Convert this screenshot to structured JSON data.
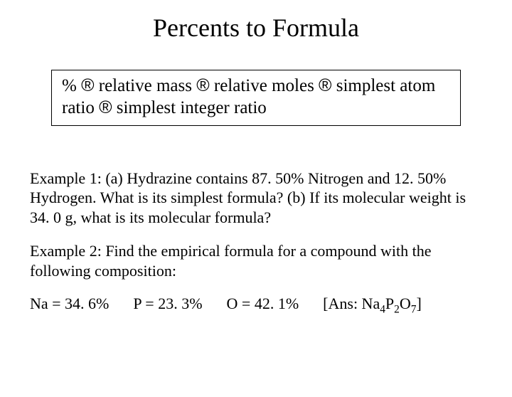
{
  "title": "Percents to Formula",
  "flow": {
    "step1": "%",
    "step2": "relative mass",
    "step3": "relative moles",
    "step4": "simplest atom ratio",
    "step5": "simplest integer ratio",
    "arrow": "®"
  },
  "example1": {
    "label": "Example 1:",
    "text": "(a) Hydrazine contains 87. 50% Nitrogen and 12. 50% Hydrogen.  What is its simplest formula?  (b)  If its molecular weight is 34. 0 g, what is its molecular formula?"
  },
  "example2": {
    "label": "Example 2:",
    "text": "Find the empirical formula for a compound with the following composition:"
  },
  "composition": {
    "na": "Na = 34. 6%",
    "p": "P = 23. 3%",
    "o": "O = 42. 1%",
    "answer_prefix": "[Ans: Na",
    "sub1": "4",
    "mid1": "P",
    "sub2": "2",
    "mid2": "O",
    "sub3": "7",
    "answer_suffix": "]"
  },
  "colors": {
    "background": "#ffffff",
    "text": "#000000",
    "border": "#000000"
  },
  "fonts": {
    "title_size": 36,
    "body_size": 22,
    "flow_size": 25
  }
}
